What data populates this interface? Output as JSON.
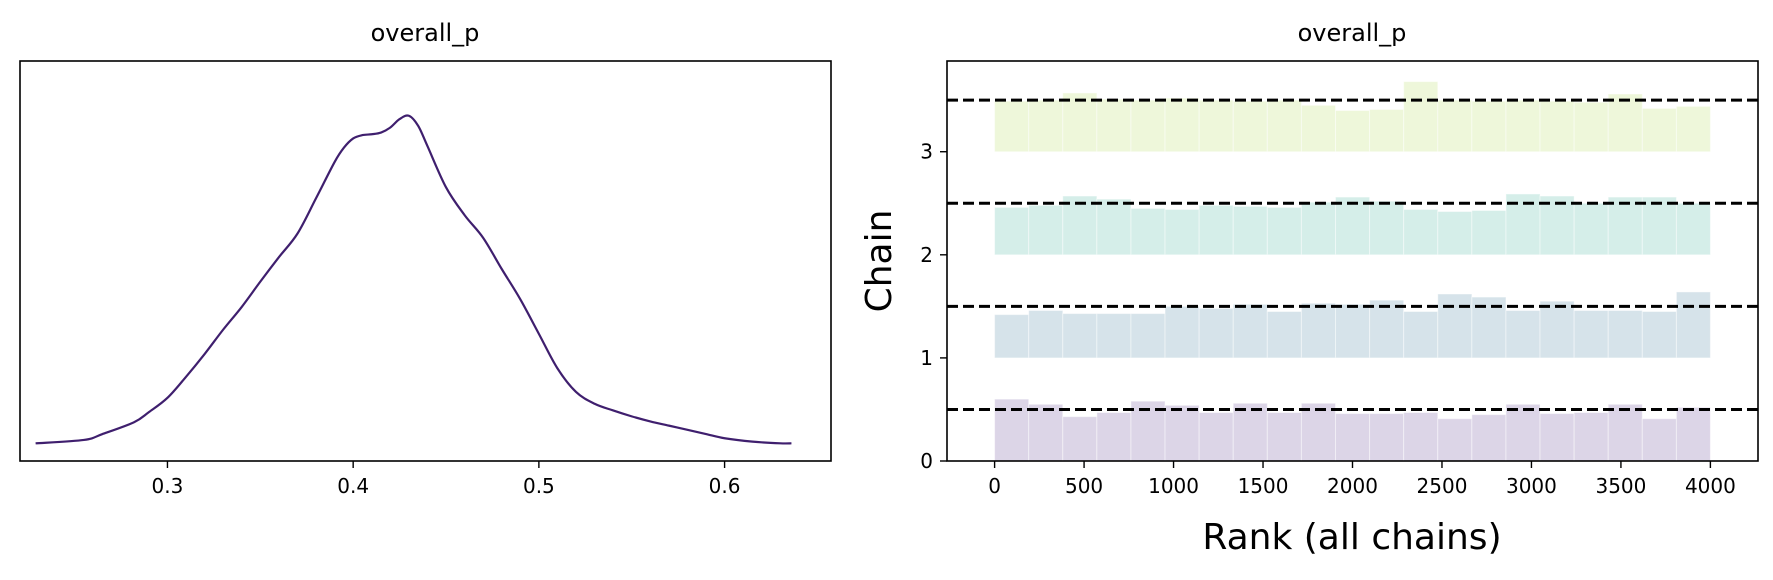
{
  "chart_data": [
    {
      "type": "line",
      "title": "overall_p",
      "xlabel": "",
      "ylabel": "",
      "xlim": [
        0.2206,
        0.6573
      ],
      "ylim": [
        -0.2,
        4.55
      ],
      "xticks": [
        0.3,
        0.4,
        0.5,
        0.6
      ],
      "xtick_labels": [
        "0.3",
        "0.4",
        "0.5",
        "0.6"
      ],
      "yticks_visible": false,
      "grid": false,
      "color": "#3f1f6e",
      "x": [
        0.229,
        0.255,
        0.265,
        0.282,
        0.29,
        0.3,
        0.31,
        0.32,
        0.33,
        0.34,
        0.35,
        0.36,
        0.37,
        0.38,
        0.39,
        0.395,
        0.4,
        0.405,
        0.41,
        0.415,
        0.42,
        0.425,
        0.43,
        0.435,
        0.44,
        0.45,
        0.46,
        0.47,
        0.48,
        0.49,
        0.5,
        0.51,
        0.52,
        0.53,
        0.54,
        0.55,
        0.56,
        0.57,
        0.58,
        0.59,
        0.6,
        0.615,
        0.63,
        0.636
      ],
      "y": [
        0.01,
        0.05,
        0.12,
        0.26,
        0.38,
        0.55,
        0.8,
        1.07,
        1.36,
        1.63,
        1.93,
        2.22,
        2.5,
        2.92,
        3.35,
        3.52,
        3.63,
        3.67,
        3.68,
        3.7,
        3.76,
        3.86,
        3.9,
        3.78,
        3.54,
        3.05,
        2.72,
        2.45,
        2.08,
        1.72,
        1.31,
        0.9,
        0.62,
        0.48,
        0.4,
        0.33,
        0.27,
        0.22,
        0.17,
        0.12,
        0.07,
        0.03,
        0.01,
        0.01
      ]
    },
    {
      "type": "bar",
      "title": "overall_p",
      "xlabel": "Rank (all chains)",
      "ylabel": "Chain",
      "xlim": [
        -266,
        4266
      ],
      "ylim": [
        0,
        3.88
      ],
      "xticks": [
        0,
        500,
        1000,
        1500,
        2000,
        2500,
        3000,
        3500,
        4000
      ],
      "yticks": [
        0,
        1,
        2,
        3
      ],
      "grid": false,
      "bin_edges": [
        0,
        190.5,
        381,
        571.5,
        762,
        952.5,
        1143,
        1333.5,
        1524,
        1714.5,
        1905,
        2095.5,
        2286,
        2476.5,
        2667,
        2857.5,
        3048,
        3238.5,
        3429,
        3619.5,
        3810,
        4000
      ],
      "reference_lines": [
        0.5,
        1.5,
        2.5,
        3.5
      ],
      "series": [
        {
          "chain": 0,
          "color": "#dcd5e7",
          "values": [
            0.6,
            0.55,
            0.43,
            0.47,
            0.58,
            0.54,
            0.47,
            0.56,
            0.47,
            0.56,
            0.46,
            0.46,
            0.47,
            0.41,
            0.45,
            0.55,
            0.46,
            0.47,
            0.55,
            0.41,
            0.52,
            0.4
          ]
        },
        {
          "chain": 1,
          "color": "#d6e3ea",
          "values": [
            1.42,
            1.46,
            1.43,
            1.43,
            1.43,
            1.5,
            1.48,
            1.52,
            1.45,
            1.53,
            1.52,
            1.56,
            1.45,
            1.62,
            1.59,
            1.46,
            1.55,
            1.46,
            1.46,
            1.45,
            1.64,
            1.64
          ]
        },
        {
          "chain": 2,
          "color": "#d5eee9",
          "values": [
            2.46,
            2.48,
            2.57,
            2.54,
            2.45,
            2.44,
            2.48,
            2.47,
            2.46,
            2.51,
            2.56,
            2.52,
            2.44,
            2.42,
            2.43,
            2.59,
            2.57,
            2.5,
            2.56,
            2.56,
            2.5,
            2.5
          ]
        },
        {
          "chain": 3,
          "color": "#eef7da",
          "values": [
            3.49,
            3.5,
            3.57,
            3.51,
            3.5,
            3.52,
            3.5,
            3.49,
            3.5,
            3.45,
            3.4,
            3.41,
            3.68,
            3.5,
            3.49,
            3.5,
            3.49,
            3.48,
            3.56,
            3.42,
            3.44,
            3.44
          ]
        }
      ]
    }
  ]
}
